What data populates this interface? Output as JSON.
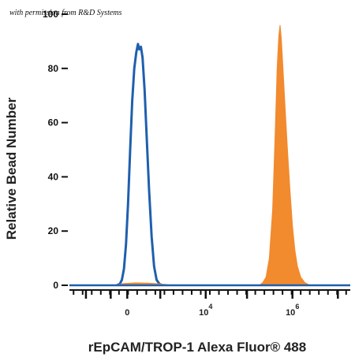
{
  "watermark": "with permission from R&D Systems",
  "chart_data": {
    "type": "area",
    "xlabel": "rEpCAM/TROP-1 Alexa Fluor® 488",
    "ylabel": "Relative Bead Number",
    "ylim": [
      0,
      100
    ],
    "y_ticks": [
      "0",
      "20",
      "40",
      "60",
      "80",
      "100"
    ],
    "x_ticks": [
      {
        "base": "0",
        "exp": ""
      },
      {
        "base": "10",
        "exp": "4"
      },
      {
        "base": "10",
        "exp": "6"
      }
    ],
    "series": [
      {
        "style": "outline",
        "color": "#1f5fae",
        "points": [
          [
            0.75,
            0
          ],
          [
            0.82,
            0.5
          ],
          [
            0.87,
            2
          ],
          [
            0.92,
            6
          ],
          [
            0.97,
            15
          ],
          [
            1.02,
            30
          ],
          [
            1.07,
            50
          ],
          [
            1.12,
            68
          ],
          [
            1.17,
            80
          ],
          [
            1.22,
            86
          ],
          [
            1.26,
            89
          ],
          [
            1.29,
            87
          ],
          [
            1.33,
            88
          ],
          [
            1.37,
            84
          ],
          [
            1.42,
            72
          ],
          [
            1.47,
            55
          ],
          [
            1.53,
            35
          ],
          [
            1.59,
            18
          ],
          [
            1.65,
            7
          ],
          [
            1.71,
            2
          ],
          [
            1.78,
            0.5
          ],
          [
            1.85,
            0
          ]
        ]
      },
      {
        "style": "filled",
        "color": "#f28a2e",
        "points": [
          [
            4.2,
            0
          ],
          [
            4.28,
            1
          ],
          [
            4.36,
            3
          ],
          [
            4.44,
            10
          ],
          [
            4.52,
            28
          ],
          [
            4.58,
            55
          ],
          [
            4.63,
            80
          ],
          [
            4.67,
            92
          ],
          [
            4.7,
            96
          ],
          [
            4.73,
            91
          ],
          [
            4.77,
            80
          ],
          [
            4.82,
            66
          ],
          [
            4.88,
            50
          ],
          [
            4.94,
            35
          ],
          [
            5.0,
            22
          ],
          [
            5.06,
            13
          ],
          [
            5.12,
            7
          ],
          [
            5.2,
            3
          ],
          [
            5.3,
            1
          ],
          [
            5.42,
            0
          ]
        ]
      },
      {
        "style": "filled",
        "color": "#f28a2e",
        "points": [
          [
            0.7,
            0
          ],
          [
            0.9,
            0.6
          ],
          [
            1.2,
            0.9
          ],
          [
            1.5,
            0.8
          ],
          [
            1.8,
            0.5
          ],
          [
            2.1,
            0
          ]
        ]
      }
    ]
  }
}
